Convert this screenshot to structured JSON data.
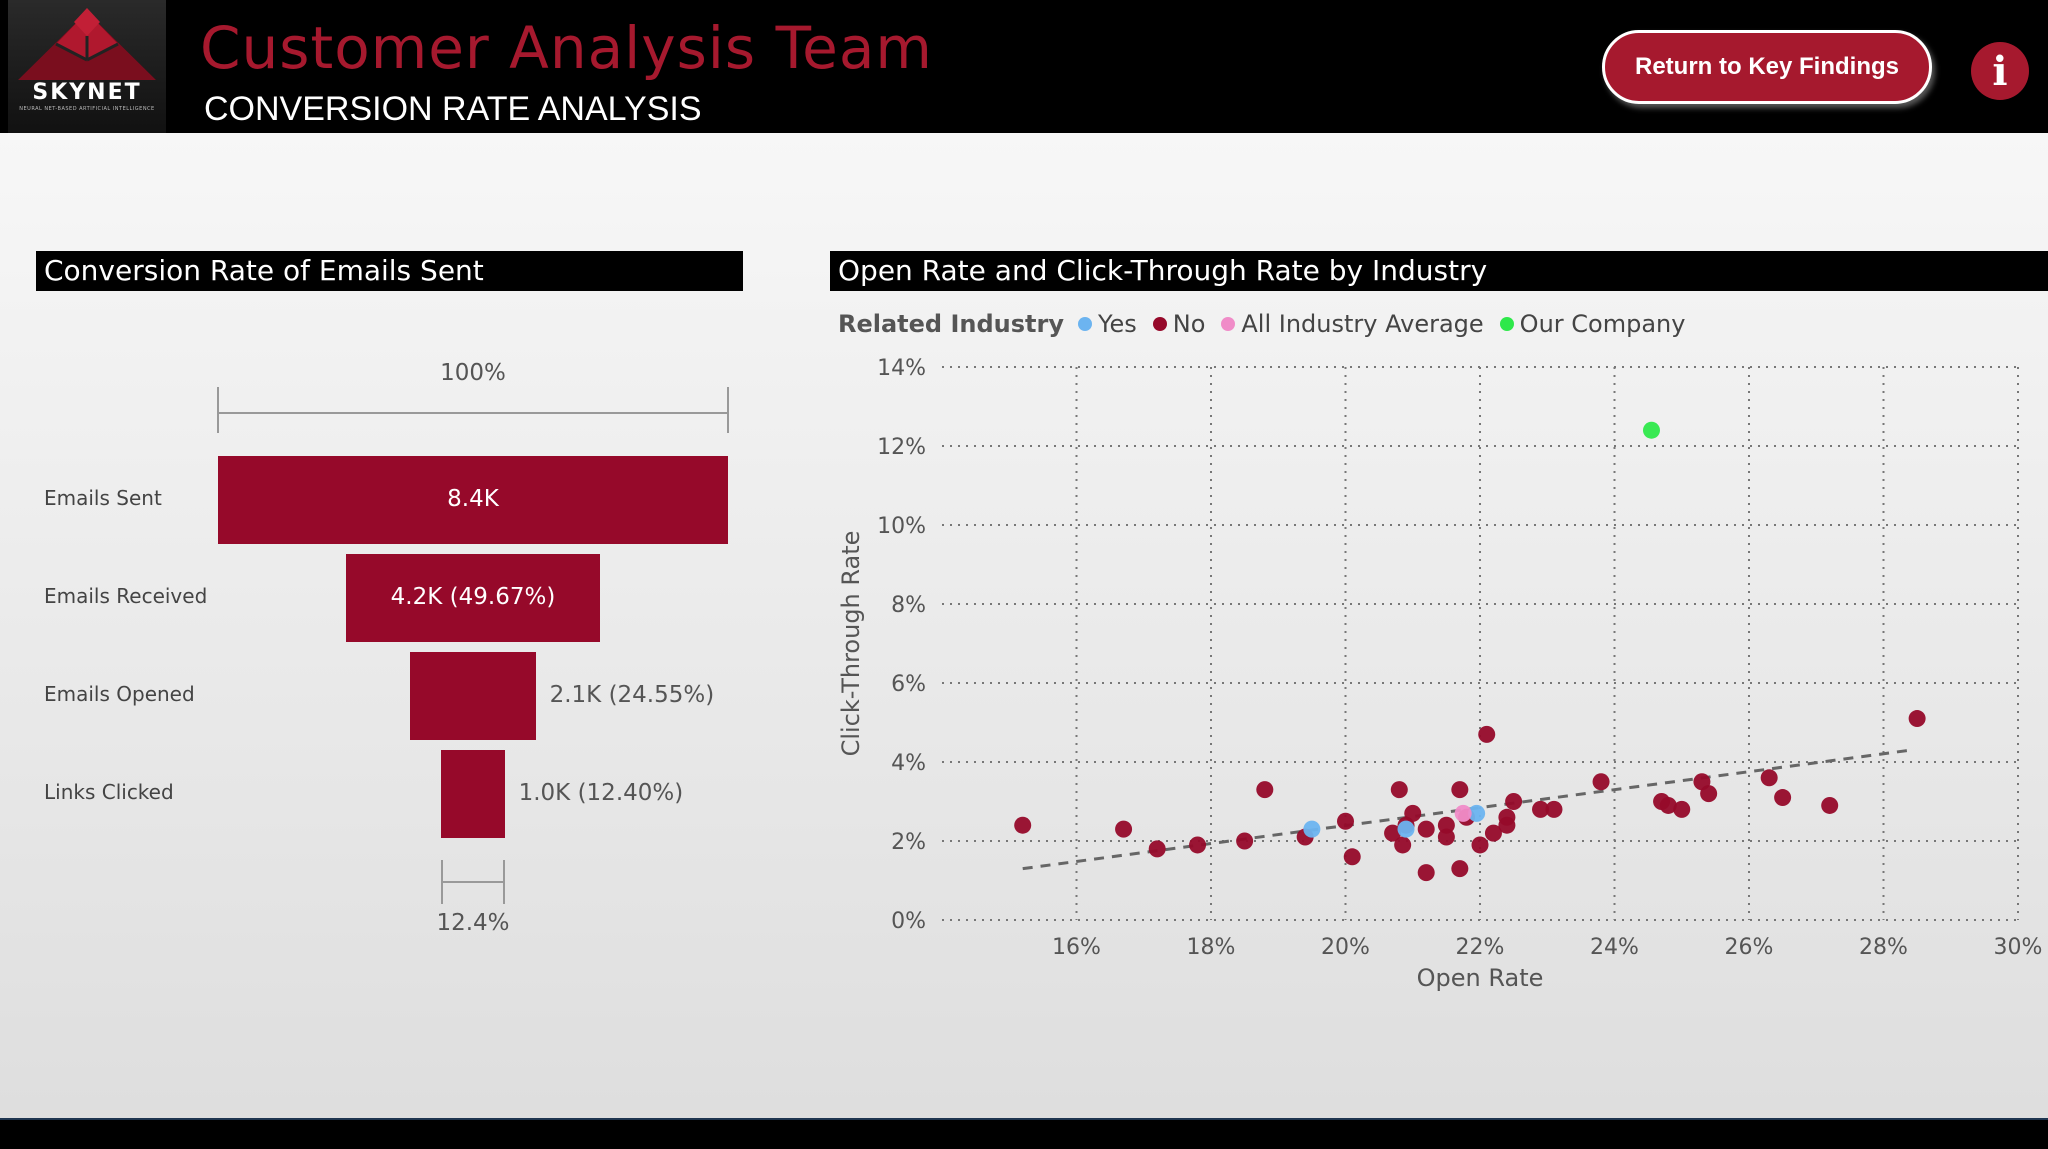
{
  "header": {
    "logo_text": "SKYNET",
    "logo_subtext": "NEURAL NET-BASED ARTIFICIAL INTELLIGENCE",
    "title": "Customer Analysis Team",
    "subtitle": "CONVERSION RATE ANALYSIS",
    "return_button_label": "Return to Key Findings",
    "info_icon": "i"
  },
  "funnel": {
    "title": "Conversion Rate of Emails Sent",
    "top_pct_label": "100%",
    "bottom_pct_label": "12.4%",
    "stages": [
      {
        "name": "Emails Sent",
        "value": 8400,
        "label": "8.4K",
        "fraction": 1.0
      },
      {
        "name": "Emails Received",
        "value": 4200,
        "label": "4.2K (49.67%)",
        "fraction": 0.4967
      },
      {
        "name": "Emails Opened",
        "value": 2100,
        "label": "2.1K (24.55%)",
        "fraction": 0.2455
      },
      {
        "name": "Links Clicked",
        "value": 1000,
        "label": "1.0K (12.40%)",
        "fraction": 0.124
      }
    ],
    "bar_color": "#96092a"
  },
  "scatter": {
    "title": "Open Rate and Click-Through Rate by Industry",
    "legend": {
      "title": "Related Industry",
      "items": [
        {
          "label": "Yes",
          "color": "#6cb4f0"
        },
        {
          "label": "No",
          "color": "#96092a"
        },
        {
          "label": "All Industry Average",
          "color": "#f08cc8"
        },
        {
          "label": "Our Company",
          "color": "#2ee84a"
        }
      ]
    }
  },
  "chart_data": {
    "type": "scatter",
    "xlabel": "Open Rate",
    "ylabel": "Click-Through Rate",
    "xlim": [
      14,
      30
    ],
    "ylim": [
      0,
      14
    ],
    "x_ticks": [
      "16%",
      "18%",
      "20%",
      "22%",
      "24%",
      "26%",
      "28%",
      "30%"
    ],
    "x_tick_values": [
      16,
      18,
      20,
      22,
      24,
      26,
      28,
      30
    ],
    "y_ticks": [
      "0%",
      "2%",
      "4%",
      "6%",
      "8%",
      "10%",
      "12%",
      "14%"
    ],
    "y_tick_values": [
      0,
      2,
      4,
      6,
      8,
      10,
      12,
      14
    ],
    "grid": true,
    "trendline": [
      [
        15.2,
        1.3
      ],
      [
        28.4,
        4.3
      ]
    ],
    "series": [
      {
        "name": "No",
        "color": "#96092a",
        "points": [
          [
            15.2,
            2.4
          ],
          [
            16.7,
            2.3
          ],
          [
            17.2,
            1.8
          ],
          [
            17.8,
            1.9
          ],
          [
            18.5,
            2.0
          ],
          [
            18.8,
            3.3
          ],
          [
            19.4,
            2.1
          ],
          [
            20.0,
            2.5
          ],
          [
            20.1,
            1.6
          ],
          [
            20.7,
            2.2
          ],
          [
            20.8,
            3.3
          ],
          [
            20.85,
            1.9
          ],
          [
            20.9,
            2.4
          ],
          [
            21.0,
            2.7
          ],
          [
            21.2,
            2.3
          ],
          [
            21.2,
            1.2
          ],
          [
            21.5,
            2.1
          ],
          [
            21.5,
            2.4
          ],
          [
            21.7,
            3.3
          ],
          [
            21.7,
            1.3
          ],
          [
            21.8,
            2.6
          ],
          [
            22.0,
            1.9
          ],
          [
            22.1,
            4.7
          ],
          [
            22.2,
            2.2
          ],
          [
            22.4,
            2.6
          ],
          [
            22.4,
            2.4
          ],
          [
            22.5,
            3.0
          ],
          [
            22.9,
            2.8
          ],
          [
            23.1,
            2.8
          ],
          [
            23.8,
            3.5
          ],
          [
            24.7,
            3.0
          ],
          [
            24.8,
            2.9
          ],
          [
            25.0,
            2.8
          ],
          [
            25.3,
            3.5
          ],
          [
            25.4,
            3.2
          ],
          [
            26.3,
            3.6
          ],
          [
            26.5,
            3.1
          ],
          [
            27.2,
            2.9
          ],
          [
            28.5,
            5.1
          ]
        ]
      },
      {
        "name": "Yes",
        "color": "#6cb4f0",
        "points": [
          [
            19.5,
            2.3
          ],
          [
            20.9,
            2.3
          ],
          [
            21.95,
            2.7
          ]
        ]
      },
      {
        "name": "All Industry Average",
        "color": "#f08cc8",
        "points": [
          [
            21.75,
            2.7
          ]
        ]
      },
      {
        "name": "Our Company",
        "color": "#2ee84a",
        "points": [
          [
            24.55,
            12.4
          ]
        ]
      }
    ]
  }
}
